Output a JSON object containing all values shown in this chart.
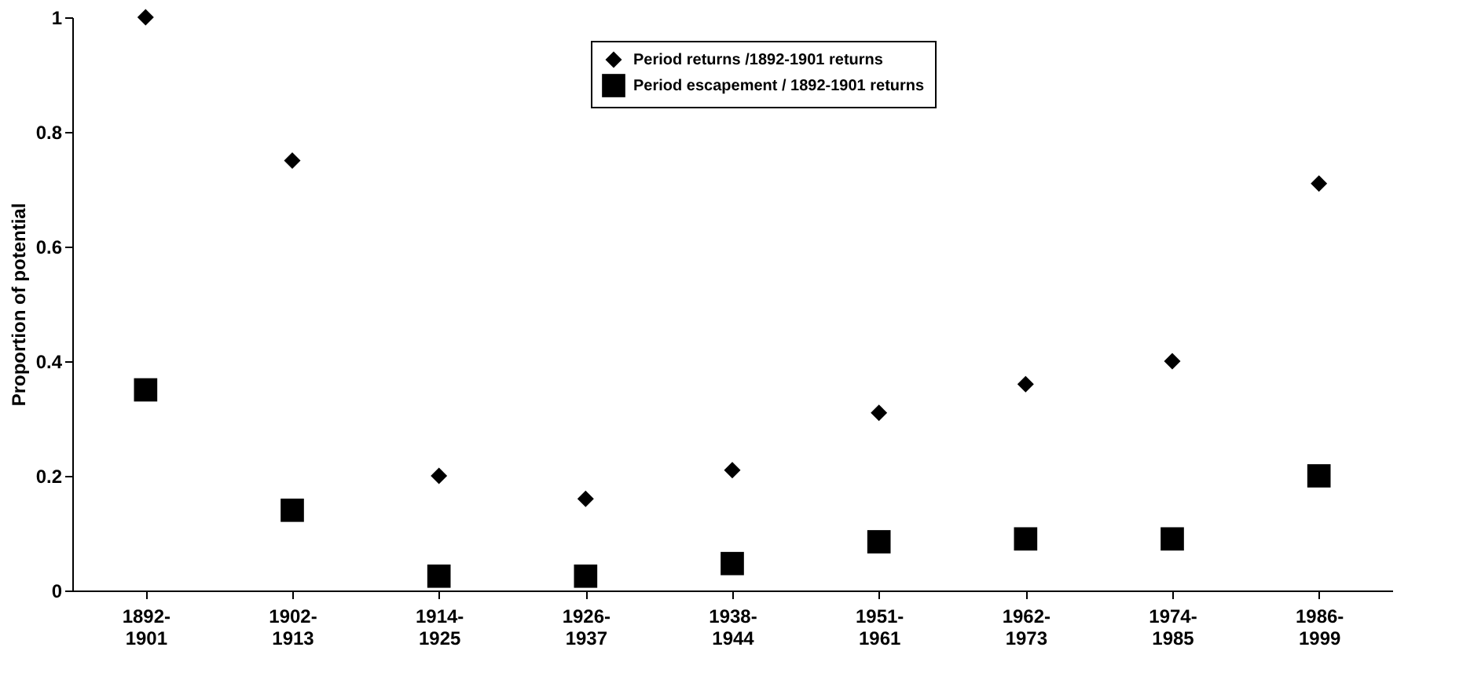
{
  "chart_data": {
    "type": "scatter",
    "ylabel": "Proportion of potential",
    "categories": [
      "1892-1901",
      "1902-1913",
      "1914-1925",
      "1926-1937",
      "1938-1944",
      "1951-1961",
      "1962-1973",
      "1974-1985",
      "1986-1999"
    ],
    "series": [
      {
        "name": "Period returns /1892-1901 returns",
        "color": "#000000",
        "marker": "diamond",
        "values": [
          1.0,
          0.75,
          0.2,
          0.16,
          0.21,
          0.31,
          0.36,
          0.4,
          0.71
        ]
      },
      {
        "name": "Period escapement / 1892-1901 returns",
        "color": "#000000",
        "marker": "square",
        "values": [
          0.35,
          0.14,
          0.025,
          0.025,
          0.047,
          0.085,
          0.09,
          0.09,
          0.2
        ]
      }
    ],
    "ylim": [
      0,
      1
    ],
    "yticks": [
      0,
      0.2,
      0.4,
      0.6,
      0.8,
      1
    ],
    "grid": false,
    "legend": "top"
  }
}
